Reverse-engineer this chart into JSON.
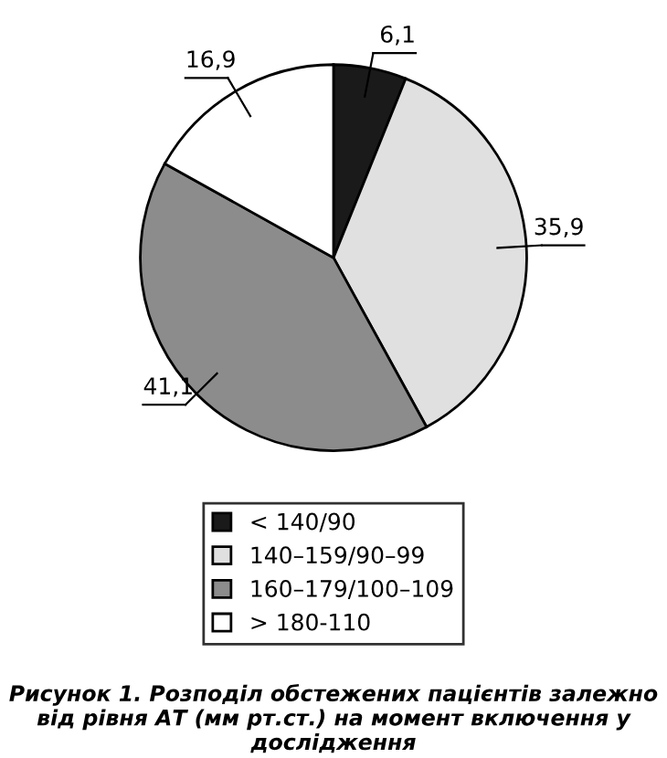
{
  "chart_data": {
    "type": "pie",
    "categories": [
      "< 140/90",
      "140–159/90–99",
      "160–179/100–109",
      "> 180-110"
    ],
    "values": [
      6.1,
      35.9,
      41.1,
      16.9
    ],
    "colors": [
      "#1a1a1a",
      "#e0e0e0",
      "#8c8c8c",
      "#ffffff"
    ],
    "value_labels": [
      "6,1",
      "35,9",
      "41,1",
      "16,9"
    ],
    "legend": "bottom",
    "annotations": [
      "Рисунок 1. Розподіл обстежених пацієнтів залежно від рівня АТ (мм рт.ст.) на момент включення у дослідження"
    ]
  }
}
